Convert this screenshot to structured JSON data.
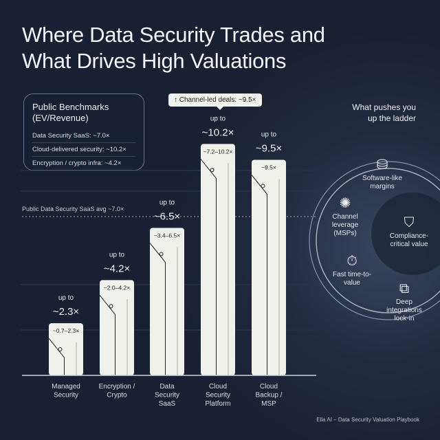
{
  "title_line1": "Where Data Security Trades and",
  "title_line2": "What Drives High Valuations",
  "benchmarks": {
    "title_line1": "Public Benchmarks",
    "title_line2": "(EV/Revenue)",
    "rows": [
      "Data Security SaaS: ~7.0×",
      "Cloud-delivered security: ~10.2×",
      "Encryption / crypto infra: ~4.2×"
    ]
  },
  "callout": "↑ Channel-led deals: ~9.5×",
  "avg_label": "Public Data Security SaaS avg ~7.0×",
  "chart_data": {
    "type": "bar",
    "categories": [
      "Managed Security",
      "Encryption / Crypto",
      "Data Security SaaS",
      "Cloud Security Platform",
      "Cloud Backup / MSP"
    ],
    "values": [
      2.3,
      4.2,
      6.5,
      10.2,
      9.5
    ],
    "value_labels": [
      "~2.3×",
      "~4.2×",
      "~6.5×",
      "~10.2×",
      "~9.5×"
    ],
    "value_prefix": "up to",
    "ranges": [
      "~0.7–2.3×",
      "~2.0–4.2×",
      "~3.4–6.5×",
      "~7.2–10.2×",
      "~9.5×"
    ],
    "reference_line": {
      "value": 7.0,
      "label": "Public Data Security SaaS avg ~7.0×"
    },
    "ylabel": "",
    "xlabel": "",
    "bar_color": "#f1f1ec"
  },
  "drivers": {
    "title_line1": "What pushes you",
    "title_line2": "up the ladder",
    "items": [
      {
        "label": "Software-like margins",
        "icon": "coins-icon"
      },
      {
        "label": "Channel leverage (MSPs)",
        "icon": "network-icon"
      },
      {
        "label": "Compliance-critical value",
        "icon": "shield-check-icon"
      },
      {
        "label": "Fast time-to-value",
        "icon": "stopwatch-icon"
      },
      {
        "label": "Deep integrations lock-in",
        "icon": "puzzle-plug-icon"
      }
    ]
  },
  "footer": "Ella AI – Data Security Valuation Playbook"
}
